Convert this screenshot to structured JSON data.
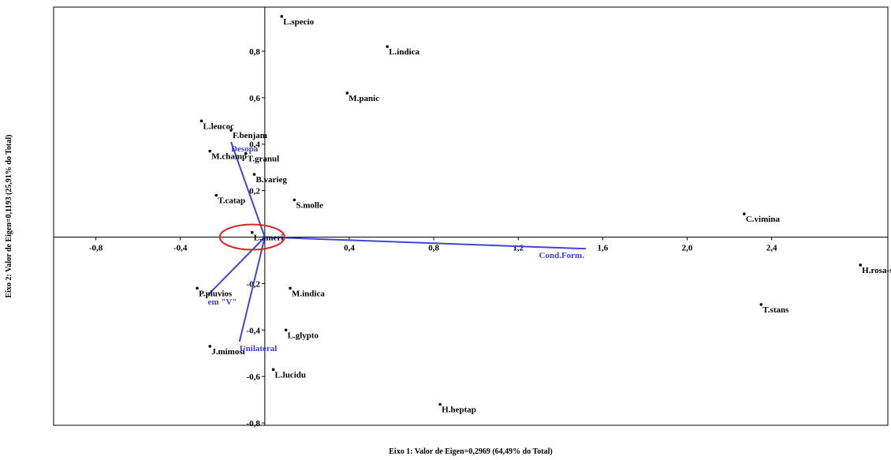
{
  "chart_data": {
    "type": "scatter",
    "xlabel": "Eixo 1: Valor de Eigen=0,2969 (64,49% do Total)",
    "ylabel": "Eixo 2: Valor de Eigen=0,1193 (25,91% do Total)",
    "xlim": [
      -1.0,
      2.95
    ],
    "ylim": [
      -0.81,
      0.99
    ],
    "x_ticks": [
      -0.8,
      -0.4,
      0.4,
      0.8,
      1.2,
      1.6,
      2.0,
      2.4
    ],
    "x_tick_labels": [
      "-0,8",
      "-0,4",
      "0,4",
      "0,8",
      "1,2",
      "1,6",
      "2,0",
      "2,4"
    ],
    "y_ticks": [
      0.8,
      0.6,
      0.4,
      0.2,
      -0.2,
      -0.4,
      -0.6,
      -0.8
    ],
    "y_tick_labels": [
      "0,8",
      "0,6",
      "0,4",
      "0,2",
      "-0,2",
      "-0,4",
      "-0,6",
      "-0,8"
    ],
    "grid": false,
    "points": [
      {
        "label": "L.specio",
        "x": 0.08,
        "y": 0.95
      },
      {
        "label": "L.indica",
        "x": 0.58,
        "y": 0.82
      },
      {
        "label": "M.panic",
        "x": 0.39,
        "y": 0.62
      },
      {
        "label": "L.leucoc",
        "x": -0.3,
        "y": 0.5
      },
      {
        "label": "F.benjam",
        "x": -0.16,
        "y": 0.46
      },
      {
        "label": "M.champ",
        "x": -0.26,
        "y": 0.37
      },
      {
        "label": "T.granul",
        "x": -0.09,
        "y": 0.36
      },
      {
        "label": "B.varieg",
        "x": -0.05,
        "y": 0.27
      },
      {
        "label": "T.catap",
        "x": -0.23,
        "y": 0.18
      },
      {
        "label": "S.molle",
        "x": 0.14,
        "y": 0.16
      },
      {
        "label": "L.ameri",
        "x": -0.06,
        "y": 0.02
      },
      {
        "label": "C.vimina",
        "x": 2.27,
        "y": 0.1
      },
      {
        "label": "H.rosa-s",
        "x": 2.82,
        "y": -0.12
      },
      {
        "label": "P.pluvios",
        "x": -0.32,
        "y": -0.22
      },
      {
        "label": "M.indica",
        "x": 0.12,
        "y": -0.22
      },
      {
        "label": "T.stans",
        "x": 2.35,
        "y": -0.29
      },
      {
        "label": "L.glypto",
        "x": 0.1,
        "y": -0.4
      },
      {
        "label": "J.mimosi",
        "x": -0.26,
        "y": -0.47
      },
      {
        "label": "L.lucidu",
        "x": 0.04,
        "y": -0.57
      },
      {
        "label": "H.heptap",
        "x": 0.83,
        "y": -0.72
      }
    ],
    "vectors": [
      {
        "label": "Desopa",
        "x": -0.16,
        "y": 0.41
      },
      {
        "label": "Cond.Form.",
        "x": 1.52,
        "y": -0.05
      },
      {
        "label": "em \"V\"",
        "x": -0.27,
        "y": -0.25
      },
      {
        "label": "Unilateral",
        "x": -0.12,
        "y": -0.45
      }
    ],
    "highlight": {
      "shape": "ellipse",
      "color": "#e02020",
      "center_x": -0.06,
      "center_y": 0.0
    }
  },
  "colors": {
    "points": "#000000",
    "vectors": "#3f48cc",
    "vector_labels": "#3a3fd0",
    "highlight": "#e02020"
  }
}
